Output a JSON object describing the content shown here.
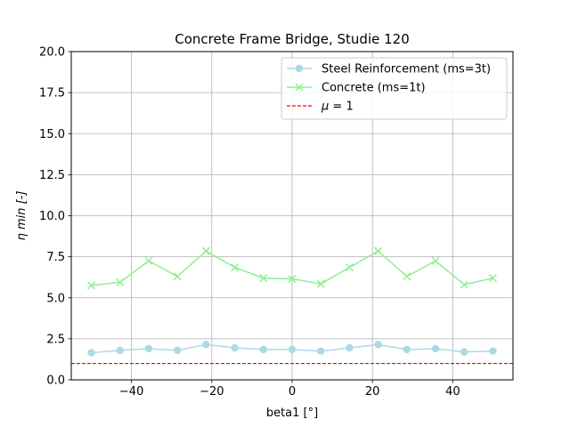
{
  "chart_data": {
    "type": "line",
    "title": "Concrete Frame Bridge, Studie 120",
    "xlabel": "beta1 [°]",
    "ylabel": "η min [-]",
    "xlim": [
      -55,
      55
    ],
    "ylim": [
      0,
      20
    ],
    "xticks": [
      -40,
      -20,
      0,
      20,
      40
    ],
    "xtick_labels": [
      "−40",
      "−20",
      "0",
      "20",
      "40"
    ],
    "yticks": [
      0,
      2.5,
      5,
      7.5,
      10,
      12.5,
      15,
      17.5,
      20
    ],
    "ytick_labels": [
      "0.0",
      "2.5",
      "5.0",
      "7.5",
      "10.0",
      "12.5",
      "15.0",
      "17.5",
      "20.0"
    ],
    "grid": true,
    "legend_position": "top-right",
    "x": [
      -50,
      -42.86,
      -35.71,
      -28.57,
      -21.43,
      -14.29,
      -7.14,
      0,
      7.14,
      14.29,
      21.43,
      28.57,
      35.71,
      42.86,
      50
    ],
    "series": [
      {
        "name": "Steel Reinforcement (ms=3t)",
        "color": "#add8e6",
        "marker": "circle",
        "values": [
          1.65,
          1.8,
          1.9,
          1.8,
          2.15,
          1.95,
          1.85,
          1.85,
          1.75,
          1.95,
          2.15,
          1.85,
          1.9,
          1.7,
          1.75
        ]
      },
      {
        "name": "Concrete (ms=1t)",
        "color": "#90ee90",
        "marker": "x",
        "values": [
          5.75,
          5.95,
          7.25,
          6.3,
          7.85,
          6.85,
          6.2,
          6.15,
          5.85,
          6.85,
          7.85,
          6.3,
          7.25,
          5.8,
          6.2
        ]
      }
    ],
    "reference_line": {
      "name": "μ = 1",
      "legend_prefix": "μ",
      "legend_suffix": " = 1",
      "y": 1,
      "color": "#ff0000",
      "style": "dashed"
    }
  }
}
